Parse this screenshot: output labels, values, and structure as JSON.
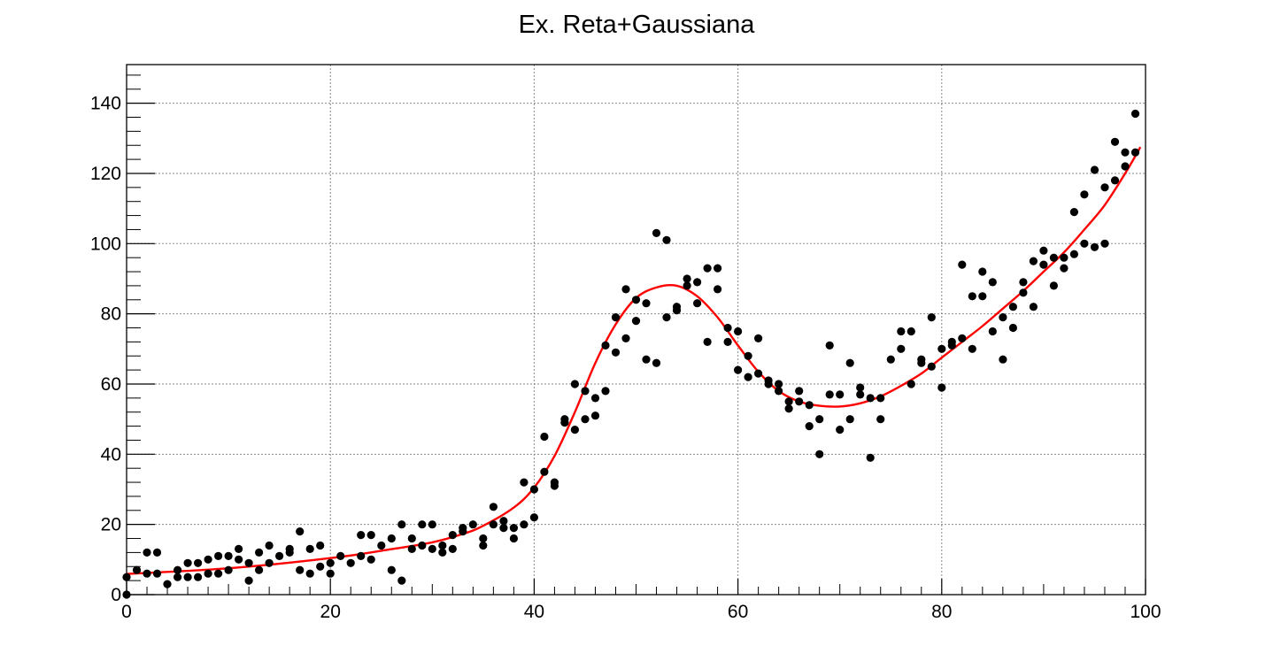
{
  "chart_data": {
    "type": "scatter",
    "title": "Ex. Reta+Gaussiana",
    "xlabel": "",
    "ylabel": "",
    "xlim": [
      0,
      100
    ],
    "ylim": [
      0,
      151
    ],
    "grid": true,
    "legend": "none",
    "x_ticks": [
      0,
      20,
      40,
      60,
      80,
      100
    ],
    "x_tick_labels": [
      "0",
      "20",
      "40",
      "60",
      "80",
      "100"
    ],
    "y_ticks": [
      0,
      20,
      40,
      60,
      80,
      100,
      120,
      140
    ],
    "y_tick_labels": [
      "0",
      "20",
      "40",
      "60",
      "80",
      "100",
      "120",
      "140"
    ],
    "colors": {
      "points": "#000000",
      "fit": "#ff0000",
      "grid": "#888888",
      "axis": "#000000"
    },
    "series": [
      {
        "type": "scatter",
        "points": [
          [
            0,
            0
          ],
          [
            0,
            5
          ],
          [
            1,
            7
          ],
          [
            2,
            12
          ],
          [
            2,
            6
          ],
          [
            3,
            12
          ],
          [
            3,
            6
          ],
          [
            4,
            3
          ],
          [
            5,
            7
          ],
          [
            5,
            5
          ],
          [
            6,
            9
          ],
          [
            6,
            5
          ],
          [
            7,
            9
          ],
          [
            7,
            5
          ],
          [
            8,
            10
          ],
          [
            8,
            6
          ],
          [
            9,
            11
          ],
          [
            9,
            6
          ],
          [
            10,
            11
          ],
          [
            10,
            7
          ],
          [
            11,
            13
          ],
          [
            11,
            10
          ],
          [
            12,
            9
          ],
          [
            12,
            4
          ],
          [
            13,
            12
          ],
          [
            13,
            7
          ],
          [
            14,
            14
          ],
          [
            14,
            9
          ],
          [
            15,
            11
          ],
          [
            16,
            13
          ],
          [
            16,
            12
          ],
          [
            17,
            18
          ],
          [
            17,
            7
          ],
          [
            18,
            13
          ],
          [
            18,
            6
          ],
          [
            19,
            14
          ],
          [
            19,
            8
          ],
          [
            20,
            9
          ],
          [
            20,
            6
          ],
          [
            21,
            11
          ],
          [
            22,
            9
          ],
          [
            23,
            17
          ],
          [
            23,
            11
          ],
          [
            24,
            17
          ],
          [
            24,
            10
          ],
          [
            25,
            14
          ],
          [
            26,
            16
          ],
          [
            26,
            7
          ],
          [
            27,
            20
          ],
          [
            27,
            4
          ],
          [
            28,
            16
          ],
          [
            28,
            13
          ],
          [
            29,
            20
          ],
          [
            29,
            14
          ],
          [
            30,
            20
          ],
          [
            30,
            13
          ],
          [
            31,
            14
          ],
          [
            31,
            12
          ],
          [
            32,
            17
          ],
          [
            32,
            13
          ],
          [
            33,
            19
          ],
          [
            33,
            18
          ],
          [
            34,
            20
          ],
          [
            35,
            16
          ],
          [
            35,
            14
          ],
          [
            36,
            25
          ],
          [
            36,
            20
          ],
          [
            37,
            21
          ],
          [
            37,
            19
          ],
          [
            38,
            19
          ],
          [
            38,
            16
          ],
          [
            39,
            32
          ],
          [
            39,
            20
          ],
          [
            40,
            30
          ],
          [
            40,
            22
          ],
          [
            41,
            45
          ],
          [
            41,
            35
          ],
          [
            42,
            32
          ],
          [
            42,
            31
          ],
          [
            43,
            50
          ],
          [
            43,
            49
          ],
          [
            44,
            60
          ],
          [
            44,
            47
          ],
          [
            45,
            58
          ],
          [
            45,
            50
          ],
          [
            46,
            56
          ],
          [
            46,
            51
          ],
          [
            47,
            71
          ],
          [
            47,
            58
          ],
          [
            48,
            79
          ],
          [
            48,
            69
          ],
          [
            49,
            87
          ],
          [
            49,
            73
          ],
          [
            50,
            84
          ],
          [
            50,
            78
          ],
          [
            51,
            83
          ],
          [
            51,
            67
          ],
          [
            52,
            103
          ],
          [
            52,
            66
          ],
          [
            53,
            101
          ],
          [
            53,
            79
          ],
          [
            54,
            82
          ],
          [
            54,
            81
          ],
          [
            55,
            90
          ],
          [
            55,
            88
          ],
          [
            56,
            89
          ],
          [
            56,
            83
          ],
          [
            57,
            93
          ],
          [
            57,
            72
          ],
          [
            58,
            93
          ],
          [
            58,
            87
          ],
          [
            59,
            76
          ],
          [
            59,
            72
          ],
          [
            60,
            75
          ],
          [
            60,
            64
          ],
          [
            61,
            68
          ],
          [
            61,
            62
          ],
          [
            62,
            73
          ],
          [
            62,
            63
          ],
          [
            63,
            61
          ],
          [
            63,
            60
          ],
          [
            64,
            60
          ],
          [
            64,
            58
          ],
          [
            65,
            55
          ],
          [
            65,
            53
          ],
          [
            66,
            58
          ],
          [
            66,
            55
          ],
          [
            67,
            54
          ],
          [
            67,
            48
          ],
          [
            68,
            50
          ],
          [
            68,
            40
          ],
          [
            69,
            71
          ],
          [
            69,
            57
          ],
          [
            70,
            57
          ],
          [
            70,
            47
          ],
          [
            71,
            66
          ],
          [
            71,
            50
          ],
          [
            72,
            59
          ],
          [
            72,
            57
          ],
          [
            73,
            56
          ],
          [
            73,
            39
          ],
          [
            74,
            56
          ],
          [
            74,
            50
          ],
          [
            75,
            67
          ],
          [
            76,
            75
          ],
          [
            76,
            70
          ],
          [
            77,
            75
          ],
          [
            77,
            60
          ],
          [
            78,
            67
          ],
          [
            78,
            66
          ],
          [
            79,
            79
          ],
          [
            79,
            65
          ],
          [
            80,
            70
          ],
          [
            80,
            59
          ],
          [
            81,
            72
          ],
          [
            81,
            71
          ],
          [
            82,
            94
          ],
          [
            82,
            73
          ],
          [
            83,
            85
          ],
          [
            83,
            70
          ],
          [
            84,
            92
          ],
          [
            84,
            85
          ],
          [
            85,
            89
          ],
          [
            85,
            75
          ],
          [
            86,
            79
          ],
          [
            86,
            67
          ],
          [
            87,
            82
          ],
          [
            87,
            76
          ],
          [
            88,
            89
          ],
          [
            88,
            86
          ],
          [
            89,
            95
          ],
          [
            89,
            82
          ],
          [
            90,
            98
          ],
          [
            90,
            94
          ],
          [
            91,
            96
          ],
          [
            91,
            88
          ],
          [
            92,
            96
          ],
          [
            92,
            93
          ],
          [
            93,
            109
          ],
          [
            93,
            97
          ],
          [
            94,
            114
          ],
          [
            94,
            100
          ],
          [
            95,
            121
          ],
          [
            95,
            99
          ],
          [
            96,
            116
          ],
          [
            96,
            100
          ],
          [
            97,
            129
          ],
          [
            97,
            118
          ],
          [
            98,
            126
          ],
          [
            98,
            122
          ],
          [
            99,
            137
          ],
          [
            99,
            126
          ]
        ]
      },
      {
        "type": "line",
        "points": [
          [
            0,
            5.9
          ],
          [
            10,
            7.5
          ],
          [
            20,
            10.4
          ],
          [
            25,
            12.5
          ],
          [
            30,
            14.9
          ],
          [
            33,
            17.3
          ],
          [
            35,
            19.6
          ],
          [
            38,
            24.8
          ],
          [
            40,
            30.5
          ],
          [
            42,
            39.5
          ],
          [
            44,
            52
          ],
          [
            46,
            66
          ],
          [
            48,
            77
          ],
          [
            50,
            84.5
          ],
          [
            52,
            87.5
          ],
          [
            54,
            88
          ],
          [
            56,
            85
          ],
          [
            58,
            79
          ],
          [
            60,
            71
          ],
          [
            62,
            63.5
          ],
          [
            64,
            58
          ],
          [
            66,
            55
          ],
          [
            68,
            53.8
          ],
          [
            70,
            53.6
          ],
          [
            72,
            54.5
          ],
          [
            74,
            56.5
          ],
          [
            76,
            59.5
          ],
          [
            78,
            63
          ],
          [
            80,
            67.5
          ],
          [
            82,
            72
          ],
          [
            84,
            76.5
          ],
          [
            86,
            81.5
          ],
          [
            88,
            86.5
          ],
          [
            90,
            92
          ],
          [
            92,
            97.5
          ],
          [
            94,
            104
          ],
          [
            96,
            111
          ],
          [
            98,
            120
          ],
          [
            99.5,
            127.5
          ]
        ]
      }
    ]
  }
}
